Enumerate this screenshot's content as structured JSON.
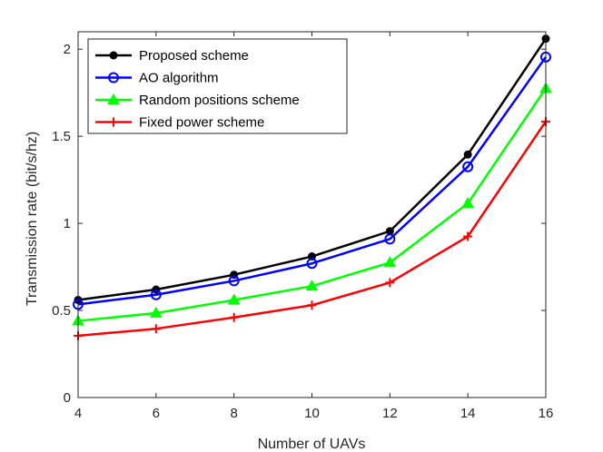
{
  "chart_data": {
    "type": "line",
    "title": "",
    "xlabel": "Number of UAVs",
    "ylabel": "Transmission rate (bit/s/hz)",
    "x": [
      4,
      6,
      8,
      10,
      12,
      14,
      16
    ],
    "xlim": [
      4,
      16
    ],
    "ylim": [
      0,
      2.1
    ],
    "xticks": [
      4,
      6,
      8,
      10,
      12,
      14,
      16
    ],
    "yticks": [
      0,
      0.5,
      1,
      1.5,
      2
    ],
    "ytick_labels": [
      "0",
      "0.5",
      "1",
      "1.5",
      "2"
    ],
    "grid": false,
    "legend_position": "top-left",
    "series": [
      {
        "name": "Proposed scheme",
        "color": "#000000",
        "marker": "dot",
        "values": [
          0.56,
          0.62,
          0.705,
          0.81,
          0.955,
          1.395,
          2.06
        ]
      },
      {
        "name": "AO algorithm",
        "color": "#0000ff",
        "marker": "circle",
        "values": [
          0.535,
          0.59,
          0.67,
          0.77,
          0.91,
          1.325,
          1.955
        ]
      },
      {
        "name": "Random positions scheme",
        "color": "#00ff00",
        "marker": "triangle",
        "values": [
          0.44,
          0.485,
          0.56,
          0.64,
          0.775,
          1.115,
          1.775
        ]
      },
      {
        "name": "Fixed power scheme",
        "color": "#ff0000",
        "marker": "plus",
        "values": [
          0.355,
          0.395,
          0.46,
          0.53,
          0.66,
          0.925,
          1.585
        ]
      }
    ]
  }
}
